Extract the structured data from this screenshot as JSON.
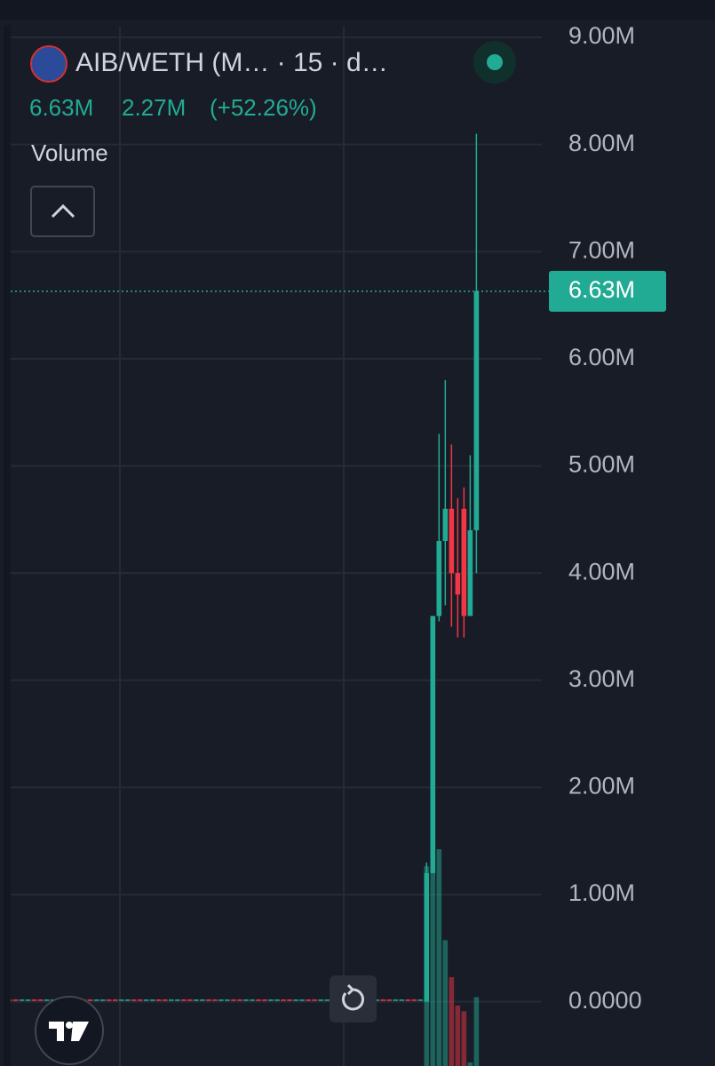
{
  "chart_data": {
    "type": "candlestick",
    "title": "AIB/WETH (M… · 15 · d…",
    "last": {
      "value": 6630000,
      "label": "6.63M"
    },
    "change": "2.27M",
    "change_pct": "(+52.26%)",
    "volume_label": "Volume",
    "up_color": "#22ab94",
    "down_color": "#f23645",
    "grid": true,
    "xlim": [
      -0.5,
      86.5
    ],
    "ylim": [
      -600000,
      9100000
    ],
    "yticks": [
      {
        "value": 0,
        "label": "0.0000"
      },
      {
        "value": 1000000,
        "label": "1.00M"
      },
      {
        "value": 2000000,
        "label": "2.00M"
      },
      {
        "value": 3000000,
        "label": "3.00M"
      },
      {
        "value": 4000000,
        "label": "4.00M"
      },
      {
        "value": 5000000,
        "label": "5.00M"
      },
      {
        "value": 6000000,
        "label": "6.00M"
      },
      {
        "value": 7000000,
        "label": "7.00M"
      },
      {
        "value": 8000000,
        "label": "8.00M"
      },
      {
        "value": 9000000,
        "label": "9.00M"
      }
    ],
    "volume_ylim": [
      0,
      1000
    ],
    "open": [
      10000,
      20000,
      20000,
      10000,
      10000,
      20000,
      20000,
      10000,
      10000,
      20000,
      20000,
      10000,
      10000,
      20000,
      20000,
      10000,
      10000,
      20000,
      20000,
      10000,
      10000,
      20000,
      20000,
      10000,
      10000,
      20000,
      20000,
      10000,
      10000,
      20000,
      20000,
      10000,
      10000,
      20000,
      20000,
      10000,
      10000,
      20000,
      20000,
      10000,
      10000,
      20000,
      20000,
      10000,
      10000,
      20000,
      20000,
      10000,
      10000,
      20000,
      20000,
      10000,
      10000,
      20000,
      20000,
      10000,
      10000,
      20000,
      20000,
      10000,
      10000,
      20000,
      20000,
      10000,
      10000,
      20000,
      20000,
      10000,
      0,
      1200000,
      3600000,
      4300000,
      4600000,
      4000000,
      4600000,
      3600000,
      4400000
    ],
    "high": [
      20000,
      20000,
      20000,
      20000,
      20000,
      20000,
      20000,
      20000,
      20000,
      20000,
      20000,
      20000,
      20000,
      20000,
      20000,
      20000,
      20000,
      20000,
      20000,
      20000,
      20000,
      20000,
      20000,
      20000,
      20000,
      20000,
      20000,
      20000,
      20000,
      20000,
      20000,
      20000,
      20000,
      20000,
      20000,
      20000,
      20000,
      20000,
      20000,
      20000,
      20000,
      20000,
      20000,
      20000,
      20000,
      20000,
      20000,
      20000,
      20000,
      20000,
      20000,
      20000,
      20000,
      20000,
      20000,
      20000,
      20000,
      20000,
      20000,
      20000,
      20000,
      20000,
      20000,
      20000,
      20000,
      20000,
      20000,
      20000,
      1300000,
      3600000,
      5300000,
      5800000,
      5200000,
      4700000,
      4800000,
      5100000,
      8100000
    ],
    "low": [
      10000,
      10000,
      10000,
      10000,
      10000,
      10000,
      10000,
      10000,
      10000,
      10000,
      10000,
      10000,
      10000,
      10000,
      10000,
      10000,
      10000,
      10000,
      10000,
      10000,
      10000,
      10000,
      10000,
      10000,
      10000,
      10000,
      10000,
      10000,
      10000,
      10000,
      10000,
      10000,
      10000,
      10000,
      10000,
      10000,
      10000,
      10000,
      10000,
      10000,
      10000,
      10000,
      10000,
      10000,
      10000,
      10000,
      10000,
      10000,
      10000,
      10000,
      10000,
      10000,
      10000,
      10000,
      10000,
      10000,
      10000,
      10000,
      10000,
      10000,
      10000,
      10000,
      10000,
      10000,
      10000,
      10000,
      10000,
      10000,
      0,
      1200000,
      3550000,
      3700000,
      3500000,
      3400000,
      3400000,
      3600000,
      4000000
    ],
    "close": [
      20000,
      10000,
      10000,
      20000,
      20000,
      10000,
      10000,
      20000,
      20000,
      10000,
      10000,
      20000,
      20000,
      10000,
      10000,
      20000,
      20000,
      10000,
      10000,
      20000,
      20000,
      10000,
      10000,
      20000,
      20000,
      10000,
      10000,
      20000,
      20000,
      10000,
      10000,
      20000,
      20000,
      10000,
      10000,
      20000,
      20000,
      10000,
      10000,
      20000,
      20000,
      10000,
      10000,
      20000,
      20000,
      10000,
      10000,
      20000,
      20000,
      10000,
      10000,
      20000,
      20000,
      10000,
      10000,
      20000,
      20000,
      10000,
      10000,
      20000,
      20000,
      10000,
      10000,
      20000,
      20000,
      10000,
      10000,
      20000,
      1200000,
      3600000,
      4300000,
      4600000,
      4000000,
      3800000,
      3600000,
      4400000,
      6630000
    ],
    "volume": [
      0,
      0,
      0,
      0,
      0,
      0,
      0,
      0,
      0,
      0,
      0,
      0,
      0,
      0,
      0,
      0,
      0,
      0,
      0,
      0,
      0,
      0,
      0,
      0,
      0,
      0,
      0,
      0,
      0,
      0,
      0,
      0,
      0,
      0,
      0,
      0,
      0,
      0,
      0,
      0,
      0,
      0,
      0,
      0,
      0,
      0,
      0,
      0,
      0,
      0,
      0,
      0,
      0,
      0,
      0,
      0,
      0,
      0,
      0,
      0,
      0,
      0,
      0,
      0,
      0,
      0,
      0,
      0,
      890,
      970,
      950,
      630,
      500,
      400,
      380,
      200,
      430
    ]
  }
}
